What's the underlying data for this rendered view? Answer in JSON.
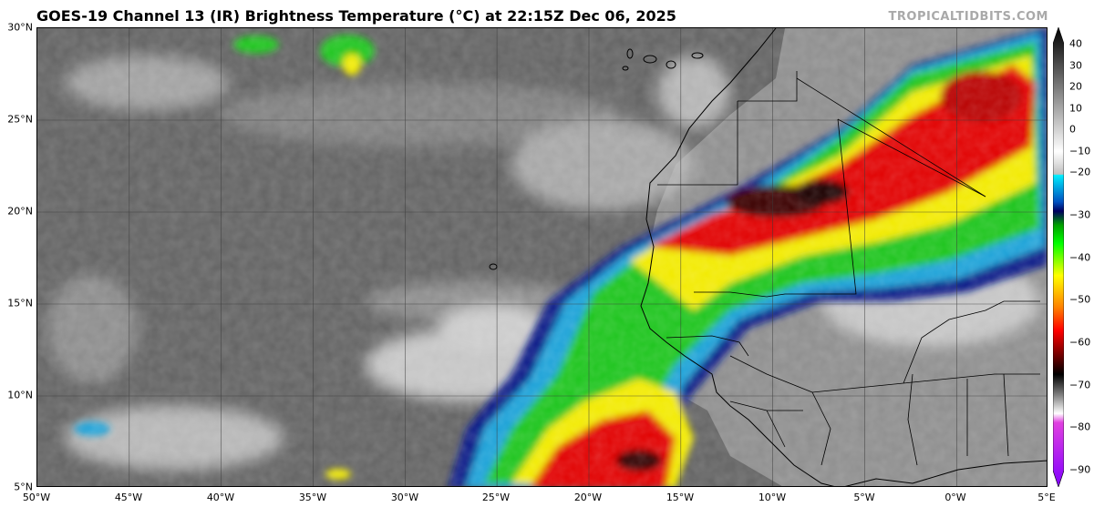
{
  "title": "GOES-19 Channel 13 (IR) Brightness Temperature (°C) at 22:15Z Dec 06, 2025",
  "credit": "TROPICALTIDBITS.COM",
  "lat_labels": [
    "30°N",
    "25°N",
    "20°N",
    "15°N",
    "10°N",
    "5°N"
  ],
  "lon_labels": [
    "50°W",
    "45°W",
    "40°W",
    "35°W",
    "30°W",
    "25°W",
    "20°W",
    "15°W",
    "10°W",
    "5°W",
    "0°W",
    "5°E"
  ],
  "colorbar": {
    "ticks": [
      "40",
      "30",
      "20",
      "10",
      "0",
      "−10",
      "−20",
      "−30",
      "−40",
      "−50",
      "−60",
      "−70",
      "−80",
      "−90"
    ],
    "stops": [
      {
        "t": 40,
        "color": "#000000"
      },
      {
        "t": 0,
        "color": "#f2f2f2"
      },
      {
        "t": -19,
        "color": "#cfcfcf"
      },
      {
        "t": -20,
        "color": "#00e8ff"
      },
      {
        "t": -30,
        "color": "#00006e"
      },
      {
        "t": -40,
        "color": "#00e600"
      },
      {
        "t": -50,
        "color": "#ffff00"
      },
      {
        "t": -60,
        "color": "#ff0000"
      },
      {
        "t": -70,
        "color": "#111111"
      },
      {
        "t": -80,
        "color": "#ffffff"
      },
      {
        "t": -90,
        "color": "#8000ff"
      }
    ]
  },
  "colors": {
    "ocean_clear": "#5f5f5f",
    "land": "#8a8a8a",
    "cloud_low": "#c9c9c9",
    "cold_cyan": "#00d8ff",
    "cold_blue": "#102090",
    "cold_green": "#22c81e",
    "cold_yellow": "#f6f000",
    "cold_red": "#e40000",
    "cold_darkred": "#3a0000"
  }
}
